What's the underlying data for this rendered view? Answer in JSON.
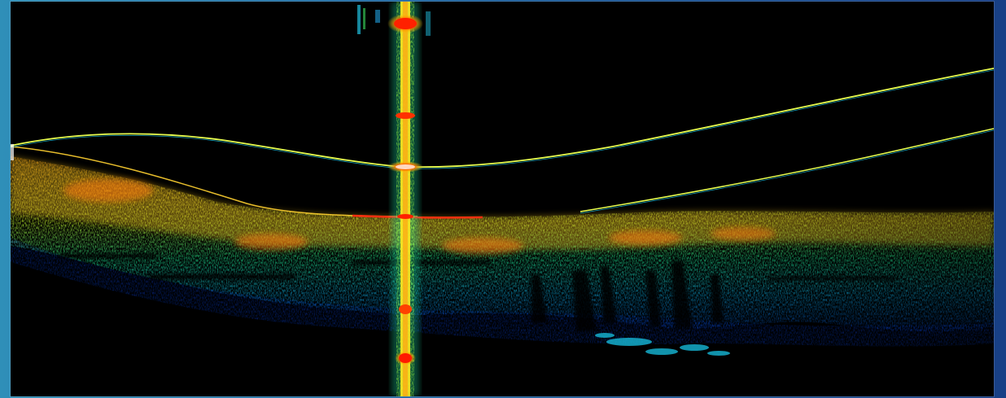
{
  "image": {
    "kind": "oct-b-scan",
    "colormap": "false-color-jet",
    "palette": {
      "background": "#000000",
      "frame": "#1f5c9a",
      "low": "#0a2a8a",
      "mid_low": "#00b0c8",
      "mid": "#3cff6a",
      "mid_high": "#ffff20",
      "high": "#ff8a00",
      "peak": "#ff1a00"
    },
    "structures": [
      "contact-lens-anterior-surface",
      "contact-lens-posterior-surface",
      "tear-film-interface",
      "stroma-tissue",
      "deep-attenuation-shadows",
      "central-specular-reflection-artifact"
    ]
  }
}
